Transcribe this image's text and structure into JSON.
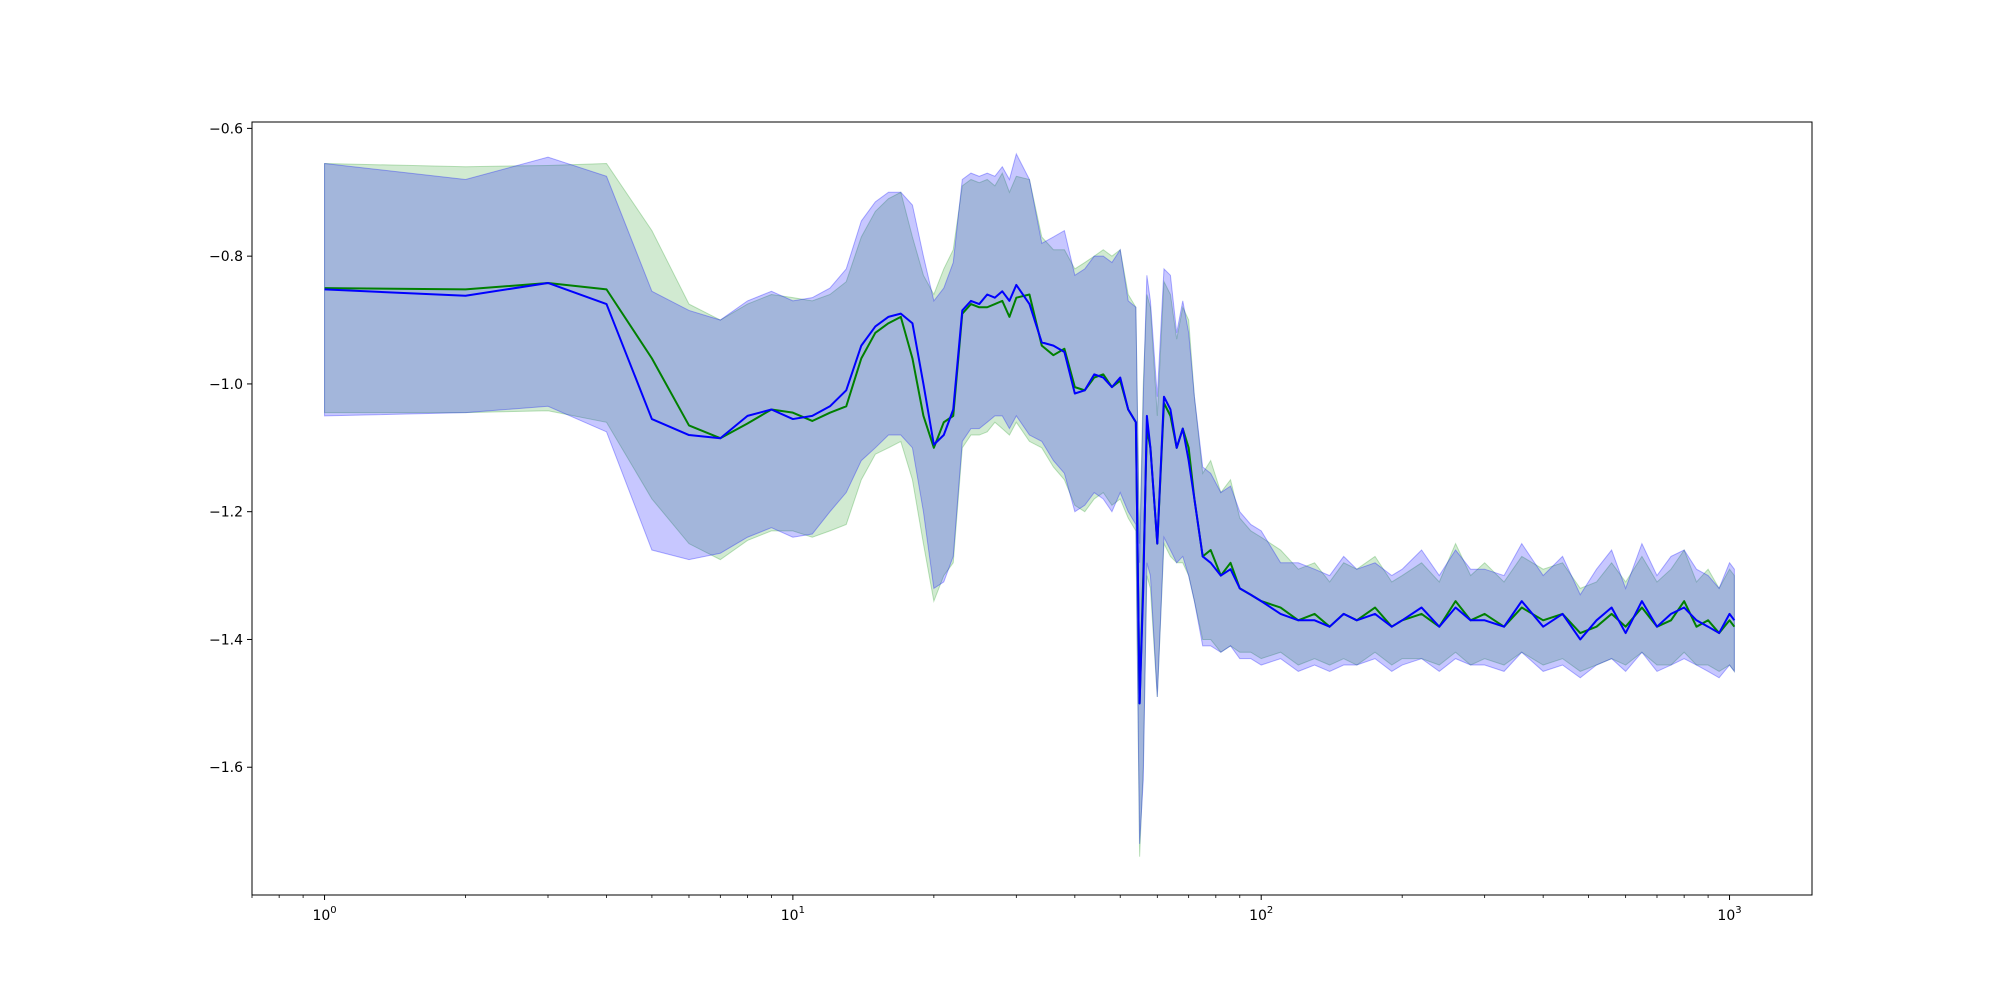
{
  "chart_data": {
    "type": "line",
    "title": "",
    "xlabel": "",
    "ylabel": "",
    "xscale": "log",
    "xlim": [
      0.7,
      1500
    ],
    "ylim": [
      -1.8,
      -0.59
    ],
    "grid": false,
    "legend": "none",
    "x_ticks": [
      {
        "value": 1,
        "base": "10",
        "exp": "0"
      },
      {
        "value": 10,
        "base": "10",
        "exp": "1"
      },
      {
        "value": 100,
        "base": "10",
        "exp": "2"
      },
      {
        "value": 1000,
        "base": "10",
        "exp": "3"
      }
    ],
    "y_ticks": [
      {
        "value": -0.6,
        "label": "−0.6"
      },
      {
        "value": -0.8,
        "label": "−0.8"
      },
      {
        "value": -1.0,
        "label": "−1.0"
      },
      {
        "value": -1.2,
        "label": "−1.2"
      },
      {
        "value": -1.4,
        "label": "−1.4"
      },
      {
        "value": -1.6,
        "label": "−1.6"
      }
    ],
    "series": [
      {
        "color": "#008000",
        "band_color": "#2ca02c",
        "x": [
          1,
          2,
          3,
          4,
          5,
          6,
          7,
          8,
          9,
          10,
          11,
          12,
          13,
          14,
          15,
          16,
          17,
          18,
          19,
          20,
          21,
          22,
          23,
          24,
          25,
          26,
          27,
          28,
          29,
          30,
          32,
          34,
          36,
          38,
          40,
          42,
          44,
          46,
          48,
          50,
          52,
          54,
          55,
          56,
          57,
          58,
          60,
          62,
          64,
          66,
          68,
          70,
          72,
          75,
          78,
          82,
          86,
          90,
          95,
          100,
          110,
          120,
          130,
          140,
          150,
          160,
          175,
          190,
          200,
          220,
          240,
          260,
          280,
          300,
          330,
          360,
          400,
          440,
          480,
          520,
          560,
          600,
          650,
          700,
          750,
          800,
          850,
          900,
          950,
          1000,
          1024
        ],
        "mean": [
          -0.85,
          -0.852,
          -0.842,
          -0.852,
          -0.96,
          -1.065,
          -1.085,
          -1.062,
          -1.04,
          -1.045,
          -1.058,
          -1.045,
          -1.035,
          -0.96,
          -0.92,
          -0.905,
          -0.895,
          -0.96,
          -1.05,
          -1.1,
          -1.06,
          -1.05,
          -0.89,
          -0.875,
          -0.88,
          -0.88,
          -0.875,
          -0.87,
          -0.895,
          -0.865,
          -0.86,
          -0.94,
          -0.955,
          -0.945,
          -1.005,
          -1.01,
          -0.99,
          -0.985,
          -1.005,
          -0.995,
          -1.04,
          -1.06,
          -1.5,
          -1.3,
          -1.07,
          -1.1,
          -1.25,
          -1.03,
          -1.05,
          -1.1,
          -1.07,
          -1.1,
          -1.18,
          -1.27,
          -1.26,
          -1.3,
          -1.28,
          -1.32,
          -1.33,
          -1.34,
          -1.35,
          -1.37,
          -1.36,
          -1.38,
          -1.36,
          -1.37,
          -1.35,
          -1.38,
          -1.37,
          -1.36,
          -1.38,
          -1.34,
          -1.37,
          -1.36,
          -1.38,
          -1.35,
          -1.37,
          -1.36,
          -1.39,
          -1.38,
          -1.36,
          -1.38,
          -1.35,
          -1.38,
          -1.37,
          -1.34,
          -1.38,
          -1.37,
          -1.39,
          -1.37,
          -1.38
        ],
        "lower": [
          -1.045,
          -1.045,
          -1.042,
          -1.06,
          -1.18,
          -1.25,
          -1.275,
          -1.245,
          -1.23,
          -1.23,
          -1.24,
          -1.23,
          -1.22,
          -1.15,
          -1.11,
          -1.1,
          -1.09,
          -1.15,
          -1.25,
          -1.34,
          -1.3,
          -1.28,
          -1.1,
          -1.08,
          -1.08,
          -1.075,
          -1.06,
          -1.07,
          -1.08,
          -1.06,
          -1.09,
          -1.1,
          -1.13,
          -1.15,
          -1.19,
          -1.2,
          -1.18,
          -1.17,
          -1.19,
          -1.18,
          -1.21,
          -1.23,
          -1.74,
          -1.6,
          -1.3,
          -1.32,
          -1.49,
          -1.25,
          -1.27,
          -1.28,
          -1.28,
          -1.3,
          -1.34,
          -1.4,
          -1.4,
          -1.42,
          -1.41,
          -1.42,
          -1.42,
          -1.43,
          -1.42,
          -1.44,
          -1.43,
          -1.44,
          -1.43,
          -1.44,
          -1.42,
          -1.44,
          -1.43,
          -1.43,
          -1.44,
          -1.42,
          -1.44,
          -1.43,
          -1.44,
          -1.42,
          -1.44,
          -1.43,
          -1.45,
          -1.44,
          -1.43,
          -1.44,
          -1.42,
          -1.44,
          -1.44,
          -1.42,
          -1.44,
          -1.44,
          -1.45,
          -1.44,
          -1.45
        ],
        "upper": [
          -0.655,
          -0.66,
          -0.658,
          -0.655,
          -0.76,
          -0.875,
          -0.9,
          -0.875,
          -0.86,
          -0.865,
          -0.87,
          -0.86,
          -0.84,
          -0.77,
          -0.73,
          -0.71,
          -0.7,
          -0.77,
          -0.83,
          -0.86,
          -0.82,
          -0.79,
          -0.69,
          -0.68,
          -0.685,
          -0.68,
          -0.69,
          -0.67,
          -0.7,
          -0.675,
          -0.68,
          -0.77,
          -0.79,
          -0.79,
          -0.82,
          -0.81,
          -0.8,
          -0.79,
          -0.8,
          -0.79,
          -0.86,
          -0.88,
          -1.25,
          -1.0,
          -0.86,
          -0.88,
          -1.05,
          -0.84,
          -0.86,
          -0.93,
          -0.88,
          -0.9,
          -1.02,
          -1.14,
          -1.12,
          -1.17,
          -1.15,
          -1.21,
          -1.23,
          -1.24,
          -1.26,
          -1.29,
          -1.28,
          -1.31,
          -1.28,
          -1.29,
          -1.27,
          -1.31,
          -1.3,
          -1.28,
          -1.31,
          -1.25,
          -1.3,
          -1.28,
          -1.31,
          -1.27,
          -1.29,
          -1.28,
          -1.32,
          -1.31,
          -1.28,
          -1.31,
          -1.27,
          -1.31,
          -1.29,
          -1.26,
          -1.31,
          -1.29,
          -1.32,
          -1.29,
          -1.3
        ]
      },
      {
        "color": "#0000ff",
        "band_color": "#0000ff",
        "x": [
          1,
          2,
          3,
          4,
          5,
          6,
          7,
          8,
          9,
          10,
          11,
          12,
          13,
          14,
          15,
          16,
          17,
          18,
          19,
          20,
          21,
          22,
          23,
          24,
          25,
          26,
          27,
          28,
          29,
          30,
          32,
          34,
          36,
          38,
          40,
          42,
          44,
          46,
          48,
          50,
          52,
          54,
          55,
          56,
          57,
          58,
          60,
          62,
          64,
          66,
          68,
          70,
          72,
          75,
          78,
          82,
          86,
          90,
          95,
          100,
          110,
          120,
          130,
          140,
          150,
          160,
          175,
          190,
          200,
          220,
          240,
          260,
          280,
          300,
          330,
          360,
          400,
          440,
          480,
          520,
          560,
          600,
          650,
          700,
          750,
          800,
          850,
          900,
          950,
          1000,
          1024
        ],
        "mean": [
          -0.852,
          -0.862,
          -0.842,
          -0.875,
          -1.055,
          -1.08,
          -1.085,
          -1.05,
          -1.04,
          -1.055,
          -1.05,
          -1.035,
          -1.01,
          -0.94,
          -0.91,
          -0.895,
          -0.89,
          -0.905,
          -1.0,
          -1.095,
          -1.08,
          -1.04,
          -0.885,
          -0.87,
          -0.875,
          -0.86,
          -0.865,
          -0.855,
          -0.87,
          -0.845,
          -0.875,
          -0.935,
          -0.94,
          -0.95,
          -1.015,
          -1.01,
          -0.985,
          -0.99,
          -1.005,
          -0.99,
          -1.04,
          -1.06,
          -1.5,
          -1.32,
          -1.05,
          -1.1,
          -1.25,
          -1.02,
          -1.04,
          -1.1,
          -1.07,
          -1.12,
          -1.18,
          -1.27,
          -1.28,
          -1.3,
          -1.29,
          -1.32,
          -1.33,
          -1.34,
          -1.36,
          -1.37,
          -1.37,
          -1.38,
          -1.36,
          -1.37,
          -1.36,
          -1.38,
          -1.37,
          -1.35,
          -1.38,
          -1.35,
          -1.37,
          -1.37,
          -1.38,
          -1.34,
          -1.38,
          -1.36,
          -1.4,
          -1.37,
          -1.35,
          -1.39,
          -1.34,
          -1.38,
          -1.36,
          -1.35,
          -1.37,
          -1.38,
          -1.39,
          -1.36,
          -1.37
        ],
        "lower": [
          -1.05,
          -1.045,
          -1.035,
          -1.075,
          -1.26,
          -1.275,
          -1.265,
          -1.24,
          -1.225,
          -1.24,
          -1.235,
          -1.2,
          -1.17,
          -1.12,
          -1.1,
          -1.08,
          -1.08,
          -1.1,
          -1.2,
          -1.32,
          -1.31,
          -1.27,
          -1.09,
          -1.07,
          -1.07,
          -1.06,
          -1.05,
          -1.05,
          -1.07,
          -1.05,
          -1.08,
          -1.09,
          -1.12,
          -1.14,
          -1.2,
          -1.19,
          -1.17,
          -1.18,
          -1.2,
          -1.17,
          -1.2,
          -1.22,
          -1.72,
          -1.62,
          -1.28,
          -1.3,
          -1.49,
          -1.24,
          -1.26,
          -1.28,
          -1.27,
          -1.3,
          -1.34,
          -1.41,
          -1.41,
          -1.42,
          -1.41,
          -1.43,
          -1.43,
          -1.44,
          -1.43,
          -1.45,
          -1.44,
          -1.45,
          -1.44,
          -1.44,
          -1.43,
          -1.45,
          -1.44,
          -1.43,
          -1.45,
          -1.43,
          -1.44,
          -1.44,
          -1.45,
          -1.42,
          -1.45,
          -1.44,
          -1.46,
          -1.44,
          -1.43,
          -1.45,
          -1.42,
          -1.45,
          -1.44,
          -1.43,
          -1.44,
          -1.45,
          -1.46,
          -1.44,
          -1.45
        ],
        "upper": [
          -0.655,
          -0.68,
          -0.645,
          -0.675,
          -0.855,
          -0.885,
          -0.9,
          -0.87,
          -0.855,
          -0.87,
          -0.865,
          -0.85,
          -0.82,
          -0.745,
          -0.715,
          -0.7,
          -0.7,
          -0.72,
          -0.8,
          -0.87,
          -0.85,
          -0.81,
          -0.68,
          -0.67,
          -0.675,
          -0.67,
          -0.675,
          -0.66,
          -0.68,
          -0.64,
          -0.68,
          -0.78,
          -0.77,
          -0.76,
          -0.83,
          -0.82,
          -0.8,
          -0.8,
          -0.81,
          -0.79,
          -0.87,
          -0.88,
          -1.28,
          -1.02,
          -0.83,
          -0.87,
          -1.02,
          -0.82,
          -0.83,
          -0.92,
          -0.87,
          -0.92,
          -1.02,
          -1.13,
          -1.14,
          -1.17,
          -1.16,
          -1.2,
          -1.22,
          -1.23,
          -1.28,
          -1.28,
          -1.29,
          -1.3,
          -1.27,
          -1.29,
          -1.28,
          -1.3,
          -1.29,
          -1.26,
          -1.3,
          -1.26,
          -1.29,
          -1.29,
          -1.3,
          -1.25,
          -1.3,
          -1.27,
          -1.33,
          -1.29,
          -1.26,
          -1.32,
          -1.25,
          -1.3,
          -1.27,
          -1.26,
          -1.29,
          -1.3,
          -1.32,
          -1.28,
          -1.29
        ]
      }
    ]
  }
}
